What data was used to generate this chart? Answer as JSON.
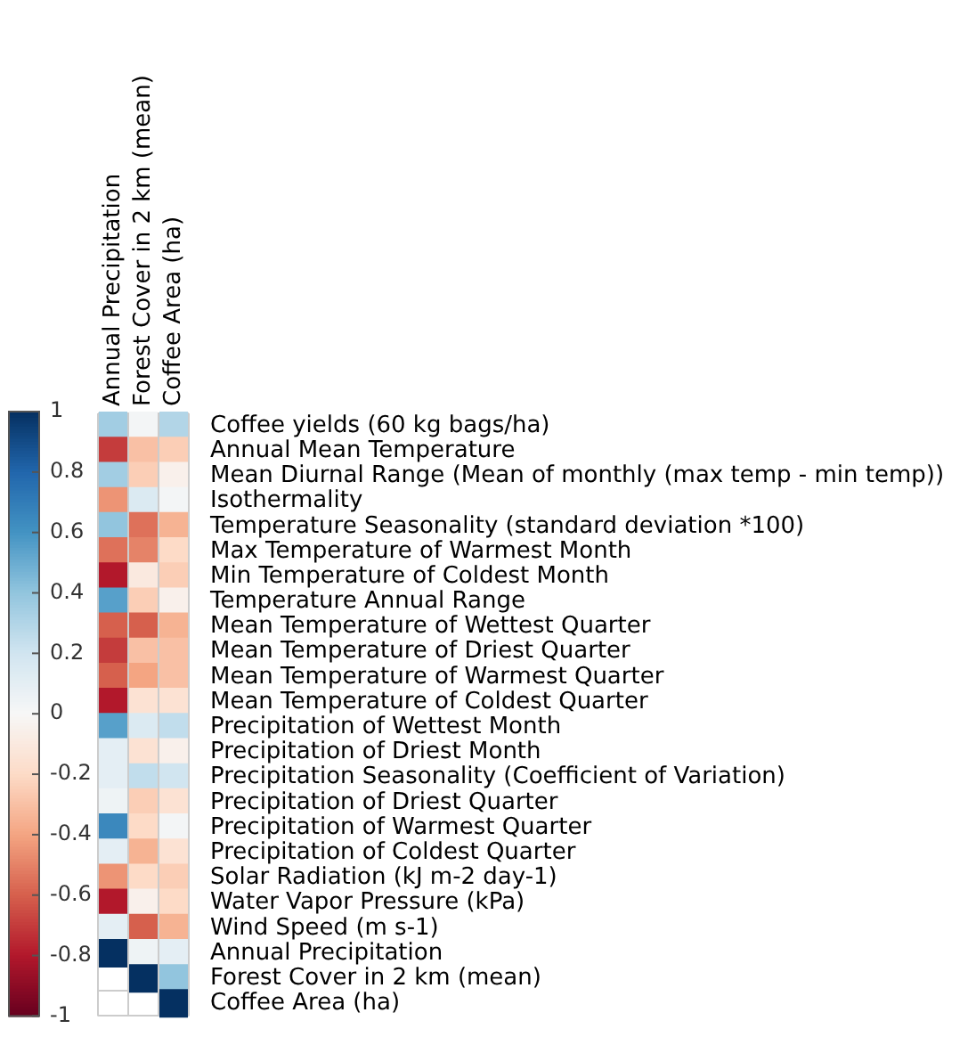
{
  "chart_data": {
    "type": "heatmap",
    "grid": true,
    "categories": [
      "Annual Precipitation",
      "Forest Cover in 2 km (mean)",
      "Coffee Area (ha)"
    ],
    "y_categories": [
      "Coffee yields (60 kg bags/ha)",
      "Annual Mean Temperature",
      "Mean Diurnal Range (Mean of monthly (max temp - min temp))",
      "Isothermality",
      "Temperature Seasonality (standard deviation *100)",
      "Max Temperature of Warmest Month",
      "Min Temperature of Coldest Month",
      "Temperature Annual Range",
      "Mean Temperature of Wettest Quarter",
      "Mean Temperature of Driest Quarter",
      "Mean Temperature of Warmest Quarter",
      "Mean Temperature of Coldest Quarter",
      "Precipitation of Wettest Month",
      "Precipitation of Driest Month",
      "Precipitation Seasonality (Coefficient of Variation)",
      "Precipitation of Driest Quarter",
      "Precipitation of Warmest Quarter",
      "Precipitation of Coldest Quarter",
      "Solar Radiation (kJ m-2 day-1)",
      "Water Vapor Pressure (kPa)",
      "Wind Speed (m s-1)",
      "Annual Precipitation",
      "Forest Cover in 2 km (mean)",
      "Coffee Area (ha)"
    ],
    "cells": [
      [
        0.35,
        0.02,
        0.3
      ],
      [
        -0.7,
        -0.3,
        -0.25
      ],
      [
        0.35,
        -0.25,
        -0.05
      ],
      [
        -0.45,
        0.15,
        0.02
      ],
      [
        0.4,
        -0.55,
        -0.35
      ],
      [
        -0.55,
        -0.5,
        -0.2
      ],
      [
        -0.8,
        -0.1,
        -0.25
      ],
      [
        0.55,
        -0.25,
        -0.05
      ],
      [
        -0.6,
        -0.6,
        -0.35
      ],
      [
        -0.7,
        -0.3,
        -0.3
      ],
      [
        -0.6,
        -0.4,
        -0.3
      ],
      [
        -0.8,
        -0.15,
        -0.15
      ],
      [
        0.55,
        0.15,
        0.25
      ],
      [
        0.1,
        -0.15,
        -0.05
      ],
      [
        0.1,
        0.25,
        0.2
      ],
      [
        0.05,
        -0.25,
        -0.15
      ],
      [
        0.65,
        -0.2,
        0.02
      ],
      [
        0.1,
        -0.35,
        -0.15
      ],
      [
        -0.45,
        -0.2,
        -0.25
      ],
      [
        -0.8,
        -0.05,
        -0.2
      ],
      [
        0.1,
        -0.6,
        -0.35
      ],
      [
        1,
        0.05,
        0.1
      ],
      [
        null,
        1,
        0.4
      ],
      [
        null,
        null,
        1
      ]
    ],
    "clim": [
      -1,
      1
    ],
    "cticks": [
      -1,
      -0.8,
      -0.6,
      -0.4,
      -0.2,
      0,
      0.2,
      0.4,
      0.6,
      0.8,
      1
    ]
  }
}
